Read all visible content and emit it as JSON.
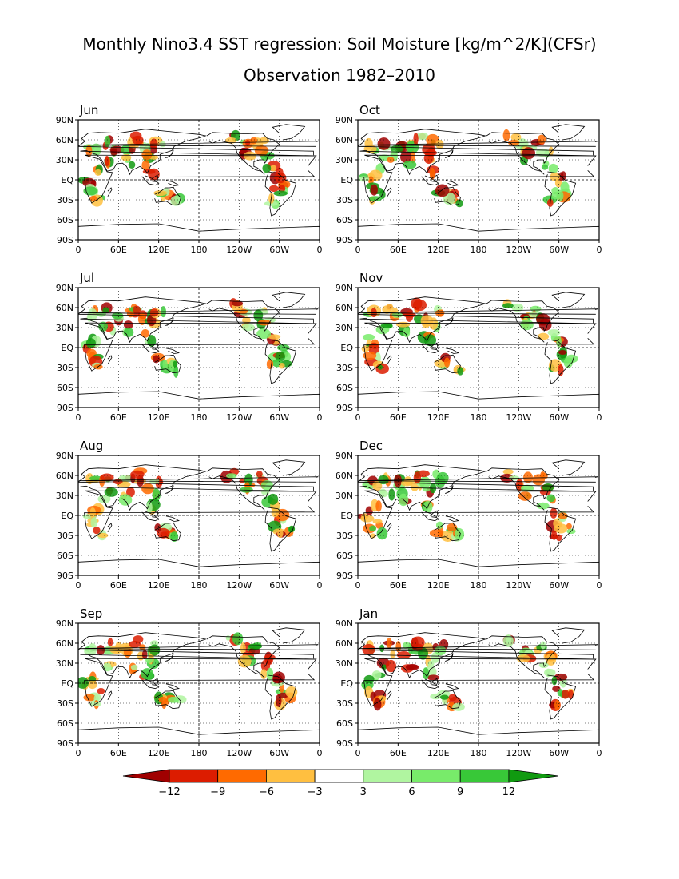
{
  "title": {
    "line1": "Monthly Nino3.4 SST regression: Soil Moisture [kg/m^2/K](CFSr)",
    "line2": "Observation 1982–2010"
  },
  "chart_data": {
    "type": "heatmap",
    "description_free": true,
    "xticks": [
      "0",
      "60E",
      "120E",
      "180",
      "120W",
      "60W",
      "0"
    ],
    "yticks": [
      "90N",
      "60N",
      "30N",
      "EQ",
      "30S",
      "60S",
      "90S"
    ],
    "xlim": [
      0,
      360
    ],
    "ylim": [
      -90,
      90
    ],
    "grid": "dashed at 180 and EQ, dotted elsewhere",
    "panels": [
      {
        "label": "Jun"
      },
      {
        "label": "Oct"
      },
      {
        "label": "Jul"
      },
      {
        "label": "Nov"
      },
      {
        "label": "Aug"
      },
      {
        "label": "Dec"
      },
      {
        "label": "Sep"
      },
      {
        "label": "Jan"
      }
    ],
    "colorbar": {
      "ticks": [
        "−12",
        "−9",
        "−6",
        "−3",
        "3",
        "6",
        "9",
        "12"
      ],
      "levels": [
        -12,
        -9,
        -6,
        -3,
        3,
        6,
        9,
        12
      ],
      "colors": [
        "#a00000",
        "#dc1c00",
        "#ff6a00",
        "#ffbf40",
        "#ffffff",
        "#b0f5a0",
        "#78eb6a",
        "#38c838",
        "#109a10"
      ]
    }
  }
}
